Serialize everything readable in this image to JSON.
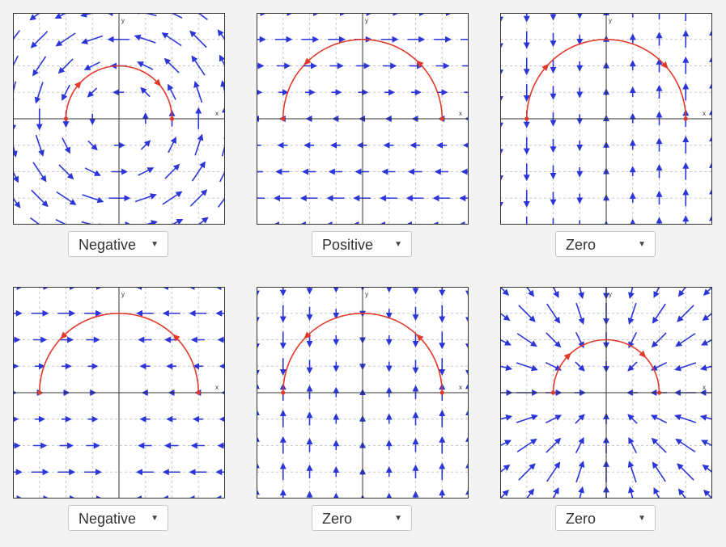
{
  "fields": [
    {
      "type": "swirl-ccw",
      "dropdown": {
        "selected": "Negative"
      }
    },
    {
      "type": "right-upper",
      "dropdown": {
        "selected": "Positive"
      }
    },
    {
      "type": "vertical-split",
      "dropdown": {
        "selected": "Zero"
      }
    },
    {
      "type": "horizontal-out",
      "dropdown": {
        "selected": "Negative"
      }
    },
    {
      "type": "vertical-down",
      "dropdown": {
        "selected": "Zero"
      }
    },
    {
      "type": "radial-in",
      "dropdown": {
        "selected": "Zero"
      }
    }
  ],
  "axis_labels": {
    "x": "x",
    "y": "y"
  },
  "colors": {
    "vector": "#2c35d8",
    "curve": "#e23a2a",
    "axis": "#333333",
    "grid": "#c8c8c8",
    "panel_bg": "#ffffff",
    "page_bg": "#f3f3f3"
  },
  "icons": {
    "dropdown_caret": "caret-down-icon"
  },
  "caret_glyph": "▼"
}
